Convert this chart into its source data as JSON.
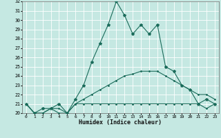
{
  "xlabel": "Humidex (Indice chaleur)",
  "bg_color": "#c5e8e2",
  "line_color": "#1a6b5a",
  "grid_color": "#ffffff",
  "x": [
    0,
    1,
    2,
    3,
    4,
    5,
    6,
    7,
    8,
    9,
    10,
    11,
    12,
    13,
    14,
    15,
    16,
    17,
    18,
    19,
    20,
    21,
    22,
    23
  ],
  "y_max": [
    21.0,
    20.0,
    20.5,
    20.5,
    21.0,
    20.0,
    21.5,
    23.0,
    25.5,
    27.5,
    29.5,
    32.0,
    30.5,
    28.5,
    29.5,
    28.5,
    29.5,
    25.0,
    24.5,
    23.0,
    22.5,
    21.0,
    21.5,
    21.0
  ],
  "y_min": [
    21.0,
    20.0,
    20.0,
    20.5,
    20.0,
    20.0,
    21.0,
    21.0,
    21.0,
    21.0,
    21.0,
    21.0,
    21.0,
    21.0,
    21.0,
    21.0,
    21.0,
    21.0,
    21.0,
    21.0,
    21.0,
    21.0,
    20.5,
    21.0
  ],
  "y_avg": [
    21.0,
    20.0,
    20.0,
    20.5,
    20.5,
    20.0,
    21.0,
    21.5,
    22.0,
    22.5,
    23.0,
    23.5,
    24.0,
    24.2,
    24.5,
    24.5,
    24.5,
    24.0,
    23.5,
    23.0,
    22.5,
    22.0,
    22.0,
    21.5
  ],
  "ylim": [
    20,
    32
  ],
  "yticks": [
    20,
    21,
    22,
    23,
    24,
    25,
    26,
    27,
    28,
    29,
    30,
    31,
    32
  ],
  "xticks": [
    0,
    1,
    2,
    3,
    4,
    5,
    6,
    7,
    8,
    9,
    10,
    11,
    12,
    13,
    14,
    15,
    16,
    17,
    18,
    19,
    20,
    21,
    22,
    23
  ]
}
